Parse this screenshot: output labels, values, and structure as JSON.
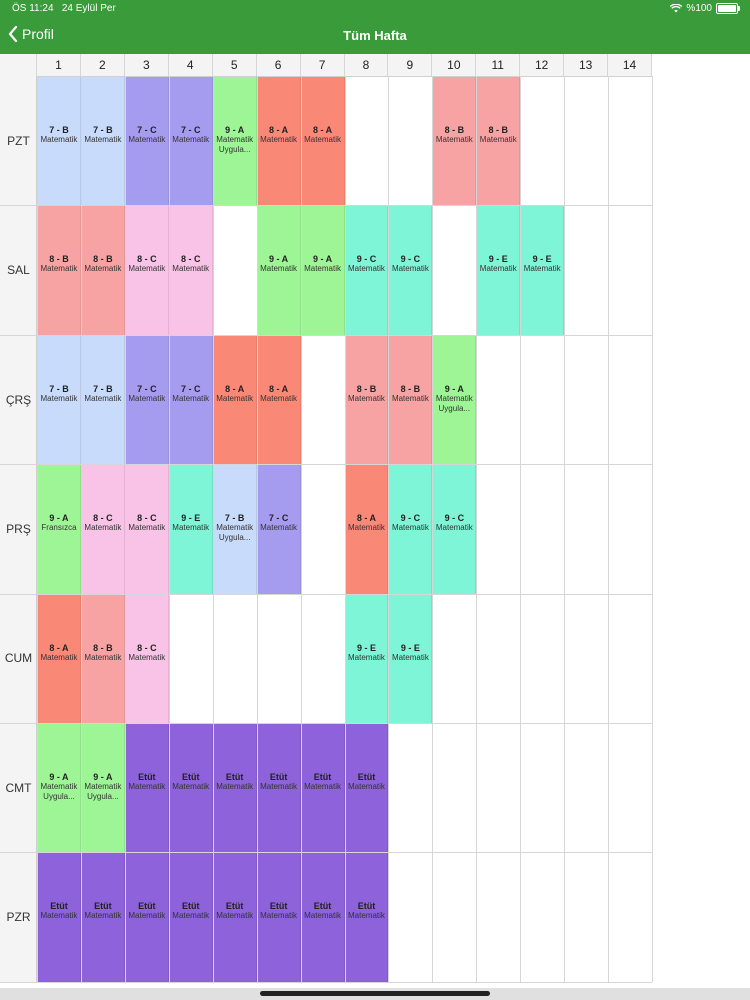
{
  "status_bar": {
    "time": "ÖS 11:24",
    "date": "24 Eylül Per",
    "battery": "%100",
    "battery_level": 1.0
  },
  "nav": {
    "back_label": "Profil",
    "title": "Tüm Hafta"
  },
  "periods": [
    "1",
    "2",
    "3",
    "4",
    "5",
    "6",
    "7",
    "8",
    "9",
    "10",
    "11",
    "12",
    "13",
    "14"
  ],
  "days": [
    "PZT",
    "SAL",
    "ÇRŞ",
    "PRŞ",
    "CUM",
    "CMT",
    "PZR"
  ],
  "colors": {
    "7-B": "#c8dbfa",
    "7-C": "#a59cf0",
    "8-A": "#fa8877",
    "8-B": "#f8a3a3",
    "8-C": "#f8c3e6",
    "9-A": "#9ef596",
    "9-C": "#7ef5d6",
    "9-E": "#7ef5d6",
    "Etüt": "#8d62da"
  },
  "lessons": [
    [
      {
        "p": 1,
        "cls": "7 - B",
        "sub": "Matematik",
        "key": "7-B"
      },
      {
        "p": 2,
        "cls": "7 - B",
        "sub": "Matematik",
        "key": "7-B"
      },
      {
        "p": 3,
        "cls": "7 - C",
        "sub": "Matematik",
        "key": "7-C"
      },
      {
        "p": 4,
        "cls": "7 - C",
        "sub": "Matematik",
        "key": "7-C"
      },
      {
        "p": 5,
        "cls": "9 - A",
        "sub": "Matematik Uygula...",
        "key": "9-A"
      },
      {
        "p": 6,
        "cls": "8 - A",
        "sub": "Matematik",
        "key": "8-A"
      },
      {
        "p": 7,
        "cls": "8 - A",
        "sub": "Matematik",
        "key": "8-A"
      },
      {
        "p": 10,
        "cls": "8 - B",
        "sub": "Matematik",
        "key": "8-B"
      },
      {
        "p": 11,
        "cls": "8 - B",
        "sub": "Matematik",
        "key": "8-B"
      }
    ],
    [
      {
        "p": 1,
        "cls": "8 - B",
        "sub": "Matematik",
        "key": "8-B"
      },
      {
        "p": 2,
        "cls": "8 - B",
        "sub": "Matematik",
        "key": "8-B"
      },
      {
        "p": 3,
        "cls": "8 - C",
        "sub": "Matematik",
        "key": "8-C"
      },
      {
        "p": 4,
        "cls": "8 - C",
        "sub": "Matematik",
        "key": "8-C"
      },
      {
        "p": 6,
        "cls": "9 - A",
        "sub": "Matematik",
        "key": "9-A"
      },
      {
        "p": 7,
        "cls": "9 - A",
        "sub": "Matematik",
        "key": "9-A"
      },
      {
        "p": 8,
        "cls": "9 - C",
        "sub": "Matematik",
        "key": "9-C"
      },
      {
        "p": 9,
        "cls": "9 - C",
        "sub": "Matematik",
        "key": "9-C"
      },
      {
        "p": 11,
        "cls": "9 - E",
        "sub": "Matematik",
        "key": "9-E"
      },
      {
        "p": 12,
        "cls": "9 - E",
        "sub": "Matematik",
        "key": "9-E"
      }
    ],
    [
      {
        "p": 1,
        "cls": "7 - B",
        "sub": "Matematik",
        "key": "7-B"
      },
      {
        "p": 2,
        "cls": "7 - B",
        "sub": "Matematik",
        "key": "7-B"
      },
      {
        "p": 3,
        "cls": "7 - C",
        "sub": "Matematik",
        "key": "7-C"
      },
      {
        "p": 4,
        "cls": "7 - C",
        "sub": "Matematik",
        "key": "7-C"
      },
      {
        "p": 5,
        "cls": "8 - A",
        "sub": "Matematik",
        "key": "8-A"
      },
      {
        "p": 6,
        "cls": "8 - A",
        "sub": "Matematik",
        "key": "8-A"
      },
      {
        "p": 8,
        "cls": "8 - B",
        "sub": "Matematik",
        "key": "8-B"
      },
      {
        "p": 9,
        "cls": "8 - B",
        "sub": "Matematik",
        "key": "8-B"
      },
      {
        "p": 10,
        "cls": "9 - A",
        "sub": "Matematik Uygula...",
        "key": "9-A"
      }
    ],
    [
      {
        "p": 1,
        "cls": "9 - A",
        "sub": "Fransızca",
        "key": "9-A"
      },
      {
        "p": 2,
        "cls": "8 - C",
        "sub": "Matematik",
        "key": "8-C"
      },
      {
        "p": 3,
        "cls": "8 - C",
        "sub": "Matematik",
        "key": "8-C"
      },
      {
        "p": 4,
        "cls": "9 - E",
        "sub": "Matematik",
        "key": "9-E"
      },
      {
        "p": 5,
        "cls": "7 - B",
        "sub": "Matematik Uygula...",
        "key": "7-B"
      },
      {
        "p": 6,
        "cls": "7 - C",
        "sub": "Matematik",
        "key": "7-C"
      },
      {
        "p": 8,
        "cls": "8 - A",
        "sub": "Matematik",
        "key": "8-A"
      },
      {
        "p": 9,
        "cls": "9 - C",
        "sub": "Matematik",
        "key": "9-C"
      },
      {
        "p": 10,
        "cls": "9 - C",
        "sub": "Matematik",
        "key": "9-C"
      }
    ],
    [
      {
        "p": 1,
        "cls": "8 - A",
        "sub": "Matematik",
        "key": "8-A"
      },
      {
        "p": 2,
        "cls": "8 - B",
        "sub": "Matematik",
        "key": "8-B"
      },
      {
        "p": 3,
        "cls": "8 - C",
        "sub": "Matematik",
        "key": "8-C"
      },
      {
        "p": 8,
        "cls": "9 - E",
        "sub": "Matematik",
        "key": "9-E"
      },
      {
        "p": 9,
        "cls": "9 - E",
        "sub": "Matematik",
        "key": "9-E"
      }
    ],
    [
      {
        "p": 1,
        "cls": "9 - A",
        "sub": "Matematik Uygula...",
        "key": "9-A"
      },
      {
        "p": 2,
        "cls": "9 - A",
        "sub": "Matematik Uygula...",
        "key": "9-A"
      },
      {
        "p": 3,
        "cls": "Etüt",
        "sub": "Matematik",
        "key": "Etüt"
      },
      {
        "p": 4,
        "cls": "Etüt",
        "sub": "Matematik",
        "key": "Etüt"
      },
      {
        "p": 5,
        "cls": "Etüt",
        "sub": "Matematik",
        "key": "Etüt"
      },
      {
        "p": 6,
        "cls": "Etüt",
        "sub": "Matematik",
        "key": "Etüt"
      },
      {
        "p": 7,
        "cls": "Etüt",
        "sub": "Matematik",
        "key": "Etüt"
      },
      {
        "p": 8,
        "cls": "Etüt",
        "sub": "Matematik",
        "key": "Etüt"
      }
    ],
    [
      {
        "p": 1,
        "cls": "Etüt",
        "sub": "Matematik",
        "key": "Etüt"
      },
      {
        "p": 2,
        "cls": "Etüt",
        "sub": "Matematik",
        "key": "Etüt"
      },
      {
        "p": 3,
        "cls": "Etüt",
        "sub": "Matematik",
        "key": "Etüt"
      },
      {
        "p": 4,
        "cls": "Etüt",
        "sub": "Matematik",
        "key": "Etüt"
      },
      {
        "p": 5,
        "cls": "Etüt",
        "sub": "Matematik",
        "key": "Etüt"
      },
      {
        "p": 6,
        "cls": "Etüt",
        "sub": "Matematik",
        "key": "Etüt"
      },
      {
        "p": 7,
        "cls": "Etüt",
        "sub": "Matematik",
        "key": "Etüt"
      },
      {
        "p": 8,
        "cls": "Etüt",
        "sub": "Matematik",
        "key": "Etüt"
      }
    ]
  ]
}
